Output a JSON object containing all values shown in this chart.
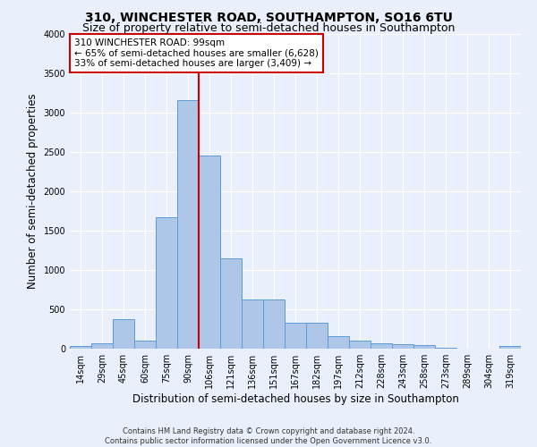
{
  "title_line1": "310, WINCHESTER ROAD, SOUTHAMPTON, SO16 6TU",
  "title_line2": "Size of property relative to semi-detached houses in Southampton",
  "xlabel": "Distribution of semi-detached houses by size in Southampton",
  "ylabel": "Number of semi-detached properties",
  "footer_line1": "Contains HM Land Registry data © Crown copyright and database right 2024.",
  "footer_line2": "Contains public sector information licensed under the Open Government Licence v3.0.",
  "categories": [
    "14sqm",
    "29sqm",
    "45sqm",
    "60sqm",
    "75sqm",
    "90sqm",
    "106sqm",
    "121sqm",
    "136sqm",
    "151sqm",
    "167sqm",
    "182sqm",
    "197sqm",
    "212sqm",
    "228sqm",
    "243sqm",
    "258sqm",
    "273sqm",
    "289sqm",
    "304sqm",
    "319sqm"
  ],
  "values": [
    30,
    70,
    380,
    100,
    1670,
    3150,
    2450,
    1150,
    620,
    620,
    330,
    330,
    155,
    100,
    70,
    55,
    40,
    15,
    5,
    5,
    30
  ],
  "bar_color": "#aec6e8",
  "bar_edge_color": "#5b9bd5",
  "annotation_text_line1": "310 WINCHESTER ROAD: 99sqm",
  "annotation_text_line2": "← 65% of semi-detached houses are smaller (6,628)",
  "annotation_text_line3": "33% of semi-detached houses are larger (3,409) →",
  "annotation_box_color": "#ffffff",
  "annotation_box_edge_color": "#cc0000",
  "vline_color": "#cc0000",
  "vline_x": 5.5,
  "ylim": [
    0,
    4000
  ],
  "yticks": [
    0,
    500,
    1000,
    1500,
    2000,
    2500,
    3000,
    3500,
    4000
  ],
  "bg_color": "#eaf0fb",
  "plot_bg_color": "#eaf0fb",
  "grid_color": "#ffffff",
  "title_fontsize": 10,
  "subtitle_fontsize": 9,
  "axis_label_fontsize": 8.5,
  "tick_fontsize": 7,
  "footer_fontsize": 6,
  "annotation_fontsize": 7.5
}
